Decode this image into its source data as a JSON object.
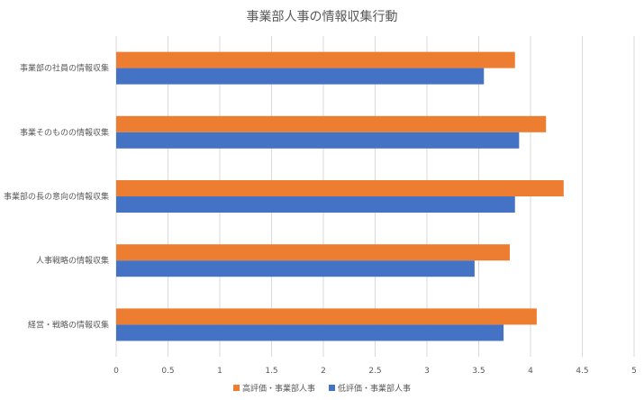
{
  "chart_data": {
    "type": "bar",
    "orientation": "horizontal",
    "title": "事業部人事の情報収集行動",
    "xlabel": "",
    "ylabel": "",
    "xlim": [
      0,
      5
    ],
    "x_ticks": [
      "0",
      "0.5",
      "1",
      "1.5",
      "2",
      "2.5",
      "3",
      "3.5",
      "4",
      "4.5",
      "5"
    ],
    "grid": "vertical",
    "legend_position": "bottom",
    "categories": [
      "事業部の社員の情報収集",
      "事業そのものの情報収集",
      "事業部の長の意向の情報収集",
      "人事戦略の情報収集",
      "経営・戦略の情報収集"
    ],
    "series": [
      {
        "name": "高評価・事業部人事",
        "color": "#ED7D31",
        "values": [
          3.85,
          4.15,
          4.32,
          3.8,
          4.06
        ]
      },
      {
        "name": "低評価・事業部人事",
        "color": "#4472C4",
        "values": [
          3.55,
          3.89,
          3.85,
          3.46,
          3.74
        ]
      }
    ]
  }
}
